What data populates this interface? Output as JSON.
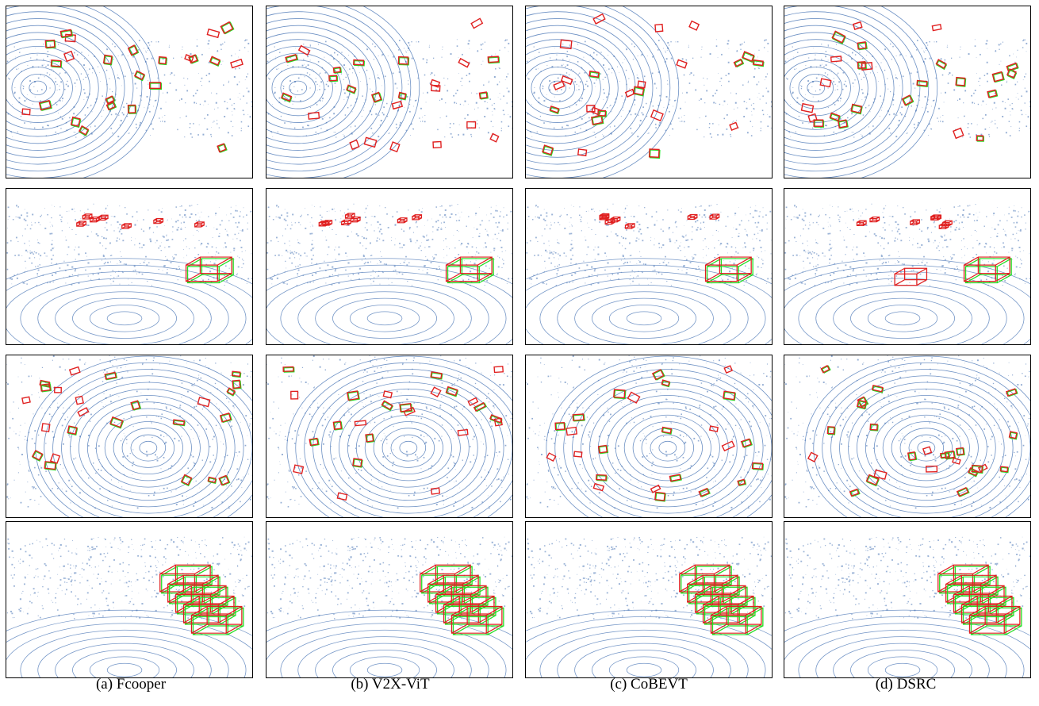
{
  "figure": {
    "columns": [
      {
        "method": "Fcooper",
        "caption": "(a) Fcooper"
      },
      {
        "method": "V2X-ViT",
        "caption": "(b) V2X-ViT"
      },
      {
        "method": "CoBEVT",
        "caption": "(c) CoBEVT"
      },
      {
        "method": "DSRC",
        "caption": "(d) DSRC"
      }
    ],
    "rows": [
      {
        "scene": "bev-1",
        "view": "top"
      },
      {
        "scene": "perspective-1",
        "view": "oblique"
      },
      {
        "scene": "bev-2",
        "view": "top"
      },
      {
        "scene": "perspective-2",
        "view": "oblique"
      }
    ],
    "colors": {
      "point_cloud": "#3b6bb0",
      "prediction_box": "#e02020",
      "ground_truth_box": "#22dd22",
      "frame": "#000000"
    }
  }
}
